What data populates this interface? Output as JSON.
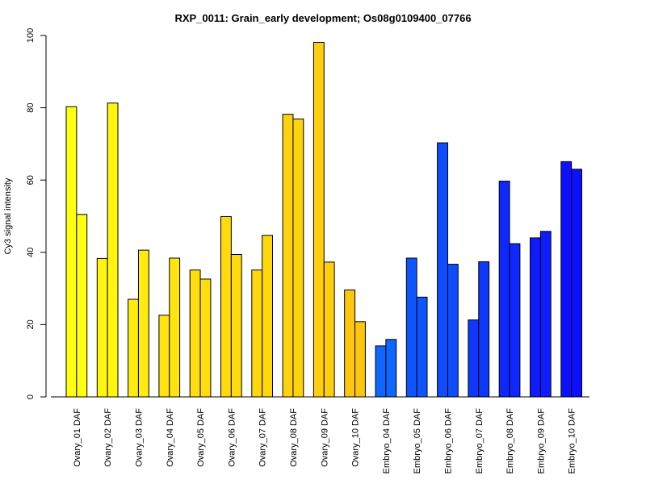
{
  "chart_data": {
    "type": "bar",
    "title": "RXP_0011: Grain_early development; Os08g0109400_07766",
    "xlabel": "",
    "ylabel": "Cy3 signal intensity",
    "ylim": [
      0,
      100
    ],
    "yticks": [
      0,
      20,
      40,
      60,
      80,
      100
    ],
    "grid": false,
    "legend": "none",
    "bars_per_category": 2,
    "categories": [
      "Ovary_01 DAF",
      "Ovary_02 DAF",
      "Ovary_03 DAF",
      "Ovary_04 DAF",
      "Ovary_05 DAF",
      "Ovary_06 DAF",
      "Ovary_07 DAF",
      "Ovary_08 DAF",
      "Ovary_09 DAF",
      "Ovary_10 DAF",
      "Embryo_04 DAF",
      "Embryo_05 DAF",
      "Embryo_06 DAF",
      "Embryo_07 DAF",
      "Embryo_08 DAF",
      "Embryo_09 DAF",
      "Embryo_10 DAF"
    ],
    "series": [
      {
        "values": [
          80.3,
          38.3,
          27.0,
          22.6,
          35.1,
          49.9,
          35.1,
          78.2,
          98.1,
          29.6,
          14.1,
          38.4,
          70.3,
          21.3,
          59.7,
          44.0,
          65.1
        ]
      },
      {
        "values": [
          50.5,
          81.3,
          40.6,
          38.4,
          32.6,
          39.4,
          44.7,
          76.9,
          37.3,
          20.8,
          15.9,
          27.6,
          36.7,
          37.4,
          42.4,
          45.8,
          63.0
        ]
      }
    ],
    "colors": [
      "#FFFF0F",
      "#FFF50F",
      "#FFEC0F",
      "#FFE40F",
      "#FFDD0F",
      "#FFDA0F",
      "#FFD70F",
      "#FFD20F",
      "#FFCE0F",
      "#FFC60F",
      "#0F67FF",
      "#0F55FF",
      "#0F4BFF",
      "#0F38FF",
      "#0F28FF",
      "#0F1CFF",
      "#0F0FFF"
    ]
  }
}
